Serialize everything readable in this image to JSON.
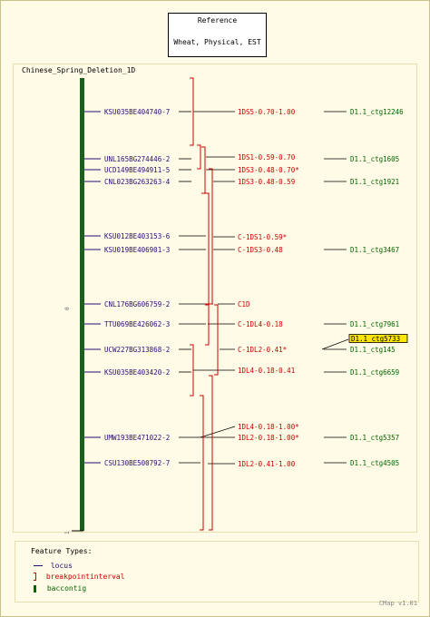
{
  "reference": {
    "title": "Reference",
    "subtitle": "Wheat, Physical, EST"
  },
  "map_title": "Chinese_Spring_Deletion_1D",
  "axis": {
    "start": "0",
    "end": "1"
  },
  "colors": {
    "locus": "#2a0a7a",
    "breakpoint": "#cc0000",
    "contig": "#006600",
    "bar": "#1e5e1e",
    "highlight": "#ffe600"
  },
  "loci": [
    {
      "name": "KSU035BE404740-7"
    },
    {
      "name": "UNL165BG274446-2"
    },
    {
      "name": "UCD149BE494911-5"
    },
    {
      "name": "CNL023BG263263-4"
    },
    {
      "name": "KSU012BE403153-6"
    },
    {
      "name": "KSU019BE406901-3"
    },
    {
      "name": "CNL176BG606759-2"
    },
    {
      "name": "TTU069BE426062-3"
    },
    {
      "name": "UCW227BG313868-2"
    },
    {
      "name": "KSU035BE403420-2"
    },
    {
      "name": "UMW193BE471022-2"
    },
    {
      "name": "CSU130BE500792-7"
    }
  ],
  "breakpoints": [
    {
      "name": "1DS5-0.70-1.00"
    },
    {
      "name": "1DS1-0.59-0.70"
    },
    {
      "name": "1DS3-0.48-0.70*"
    },
    {
      "name": "1DS3-0.48-0.59"
    },
    {
      "name": "C-1DS1-0.59*"
    },
    {
      "name": "C-1DS3-0.48"
    },
    {
      "name": "C1D"
    },
    {
      "name": "C-1DL4-0.18"
    },
    {
      "name": "C-1DL2-0.41*"
    },
    {
      "name": "1DL4-0.18-0.41"
    },
    {
      "name": "1DL4-0.18-1.00*"
    },
    {
      "name": "1DL2-0.18-1.00*"
    },
    {
      "name": "1DL2-0.41-1.00"
    }
  ],
  "contigs": [
    {
      "name": "D1.1_ctg12246"
    },
    {
      "name": "D1.1_ctg1605"
    },
    {
      "name": "D1.1_ctg1921"
    },
    {
      "name": "D1.1_ctg3467"
    },
    {
      "name": "D1.1_ctg7961"
    },
    {
      "name": "D1.1_ctg5733"
    },
    {
      "name": "D1.1_ctg145"
    },
    {
      "name": "D1.1_ctg6659"
    },
    {
      "name": "D1.1_ctg5357"
    },
    {
      "name": "D1.1_ctg4505"
    }
  ],
  "legend": {
    "title": "Feature Types:",
    "items": [
      {
        "label": "locus",
        "icon": "line"
      },
      {
        "label": "breakpointinterval",
        "icon": "bracket"
      },
      {
        "label": "baccontig",
        "icon": "bar"
      }
    ]
  },
  "footer": "CMap v1.01"
}
